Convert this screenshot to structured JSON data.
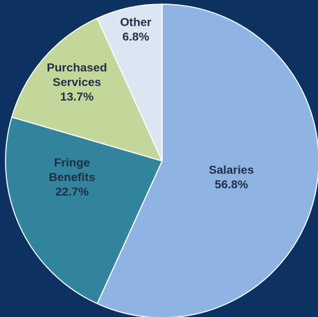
{
  "chart_data": {
    "type": "pie",
    "title": "",
    "start_angle_deg": 0,
    "direction": "clockwise",
    "legend": "none",
    "slices": [
      {
        "key": "salaries",
        "label_lines": [
          "Salaries"
        ],
        "percent_label": "56.8%",
        "value": 56.8,
        "color": "#8fb4e3"
      },
      {
        "key": "fringe-benefits",
        "label_lines": [
          "Fringe",
          "Benefits"
        ],
        "percent_label": "22.7%",
        "value": 22.7,
        "color": "#31849b"
      },
      {
        "key": "purchased-services",
        "label_lines": [
          "Purchased",
          "Services"
        ],
        "percent_label": "13.7%",
        "value": 13.7,
        "color": "#c4d79b"
      },
      {
        "key": "other",
        "label_lines": [
          "Other"
        ],
        "percent_label": "6.8%",
        "value": 6.8,
        "color": "#dce6f2"
      }
    ]
  },
  "colors": {
    "background": "#0d3161",
    "slice_border": "#ffffff",
    "label_text": "#1f2f47"
  }
}
